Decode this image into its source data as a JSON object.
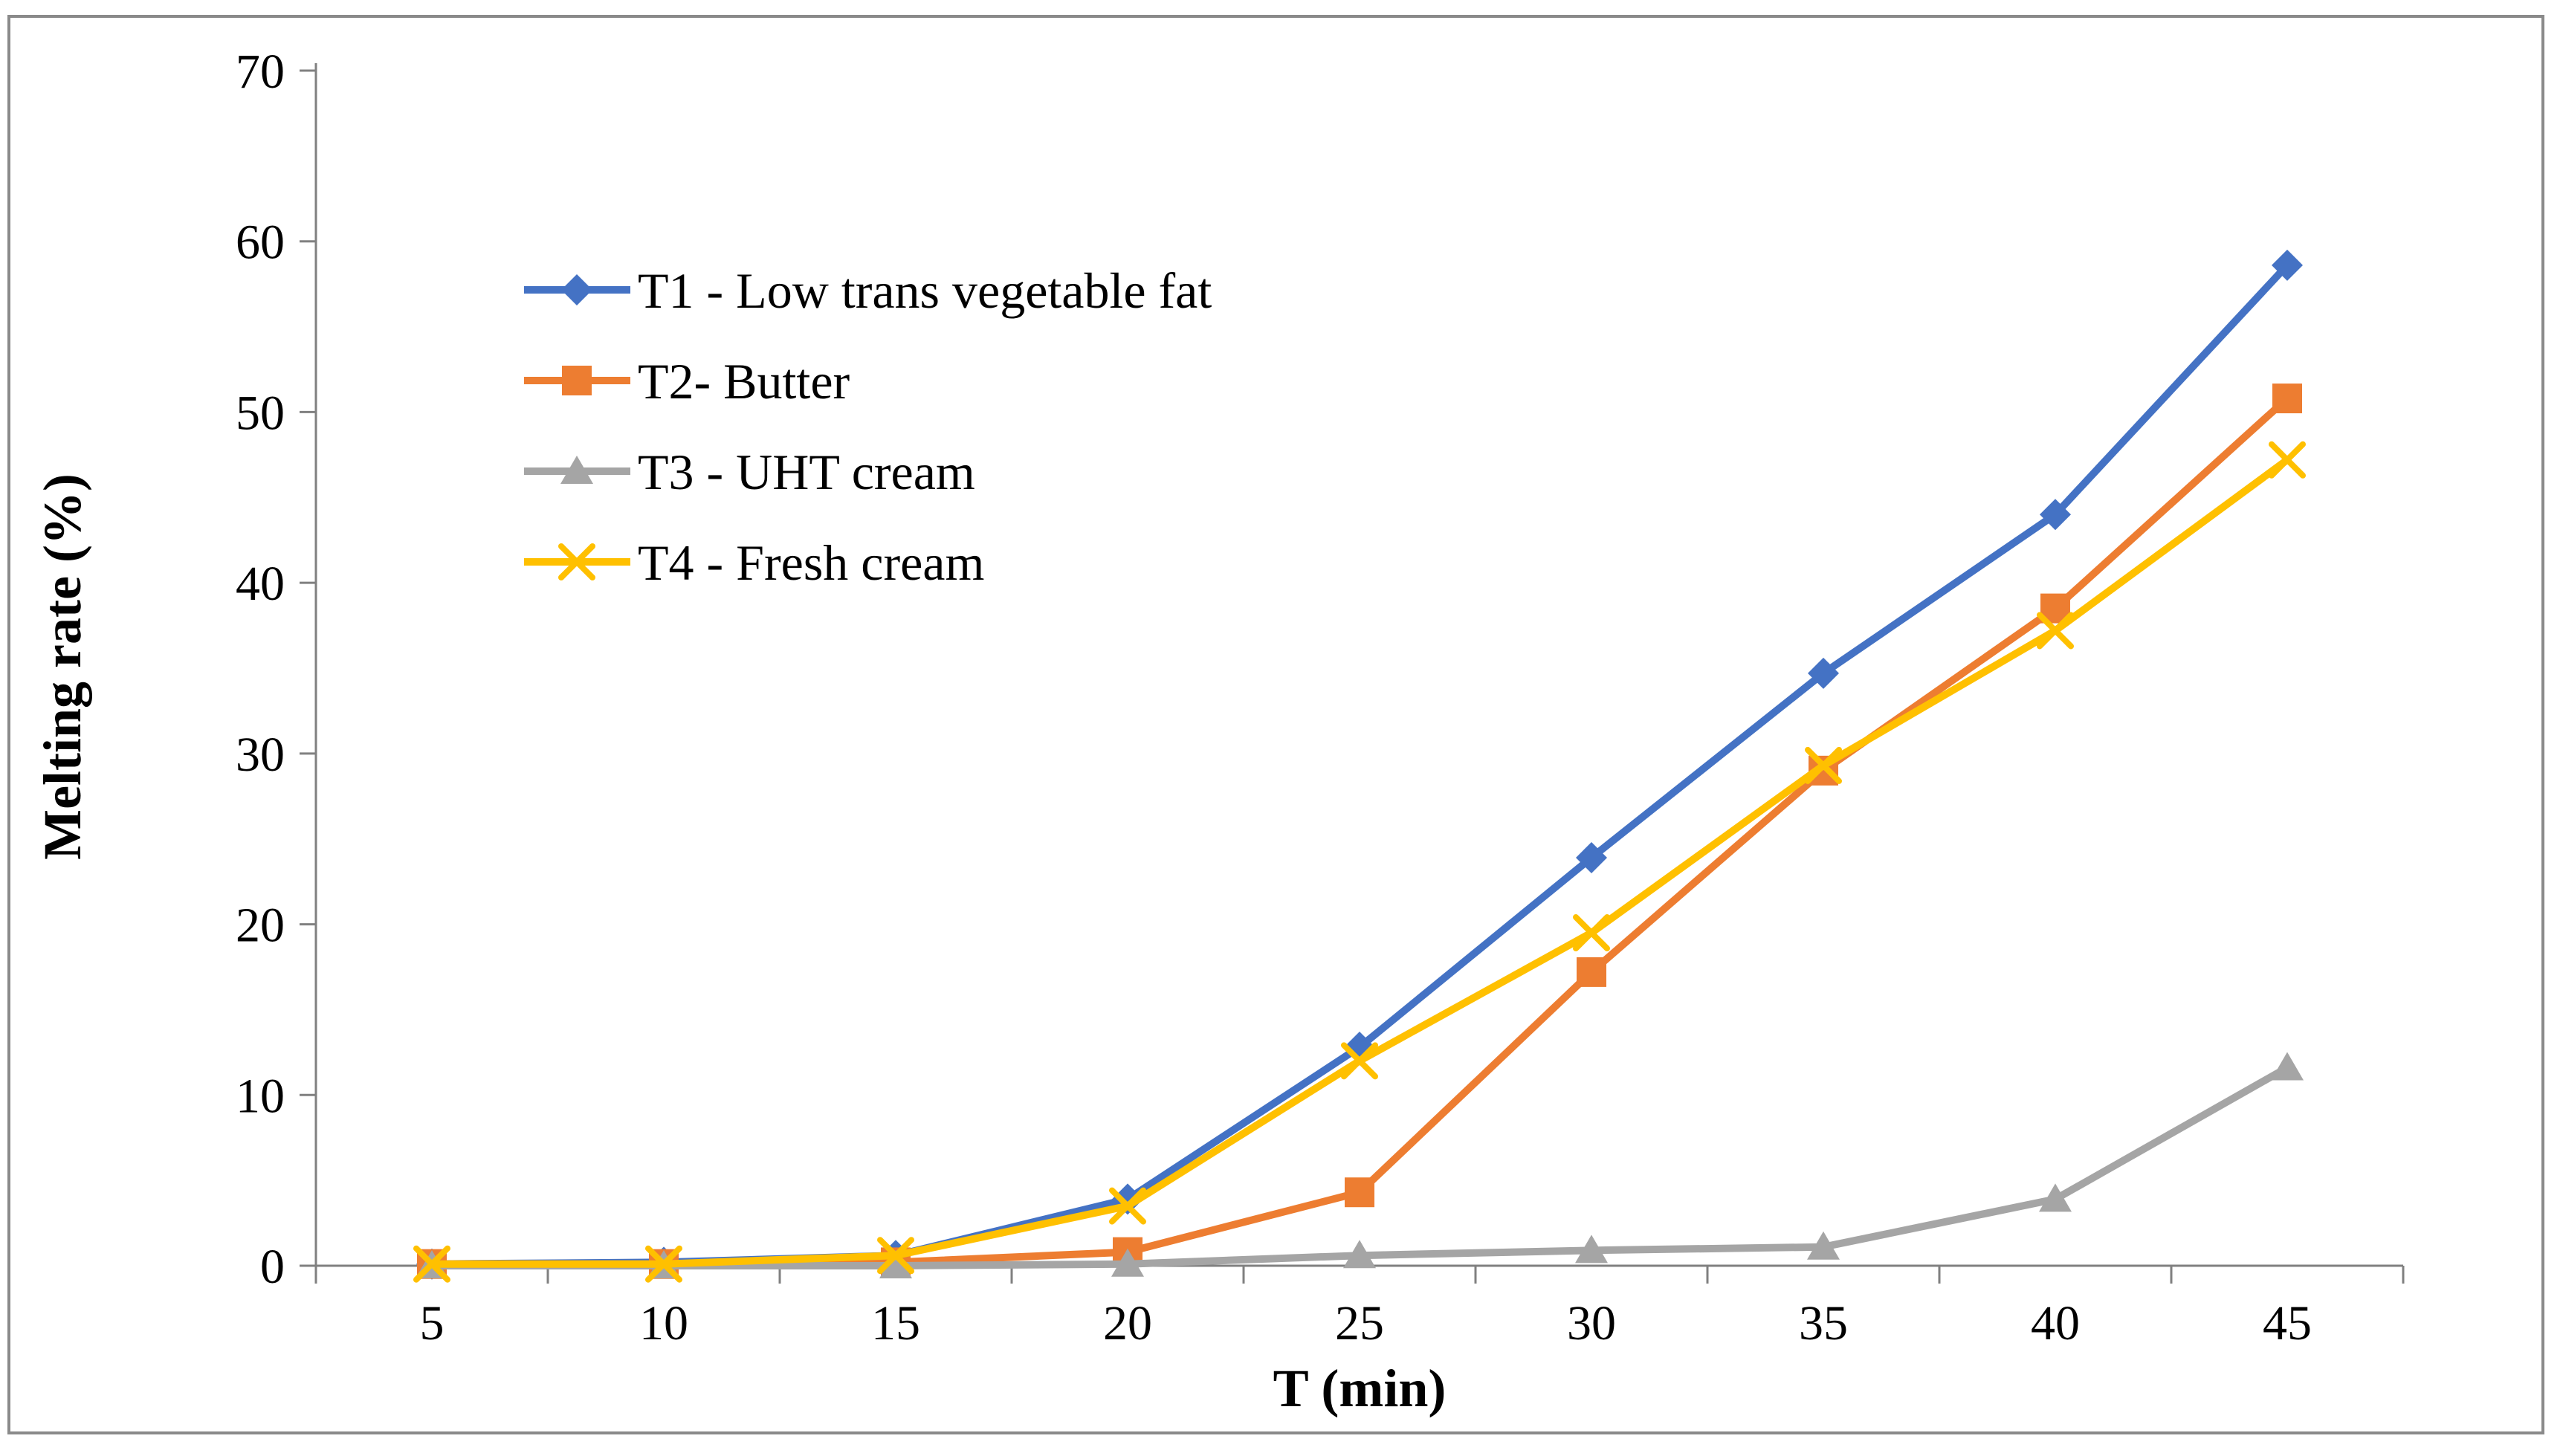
{
  "figure": {
    "background": "#ffffff",
    "border_color": "#8a8a8a",
    "axis_color": "#808080"
  },
  "chart_data": {
    "type": "line",
    "title": "",
    "xlabel": "T (min)",
    "ylabel": "Melting rate (%)",
    "categories": [
      5,
      10,
      15,
      20,
      25,
      30,
      35,
      40,
      45
    ],
    "x_tick_labels": [
      "5",
      "10",
      "15",
      "20",
      "25",
      "30",
      "35",
      "40",
      "45"
    ],
    "y_ticks": [
      0,
      10,
      20,
      30,
      40,
      50,
      60,
      70
    ],
    "ylim": [
      0,
      70
    ],
    "grid": false,
    "legend_position": "upper-left-inside",
    "series": [
      {
        "name": "T1 - Low trans vegetable fat",
        "color": "#4472C4",
        "marker": "diamond",
        "values": [
          0.1,
          0.2,
          0.6,
          3.9,
          12.8,
          23.9,
          34.7,
          44.0,
          58.6
        ]
      },
      {
        "name": "T2- Butter",
        "color": "#ED7D31",
        "marker": "square",
        "values": [
          0.1,
          0.1,
          0.2,
          0.8,
          4.3,
          17.2,
          29.0,
          38.5,
          50.8
        ]
      },
      {
        "name": "T3 - UHT cream",
        "color": "#A5A5A5",
        "marker": "triangle",
        "values": [
          0.0,
          0.0,
          0.0,
          0.1,
          0.6,
          0.9,
          1.1,
          3.9,
          11.6
        ]
      },
      {
        "name": "T4 - Fresh cream",
        "color": "#FFC000",
        "marker": "x",
        "values": [
          0.1,
          0.1,
          0.6,
          3.5,
          12.0,
          19.5,
          29.3,
          37.2,
          47.2
        ]
      }
    ]
  }
}
